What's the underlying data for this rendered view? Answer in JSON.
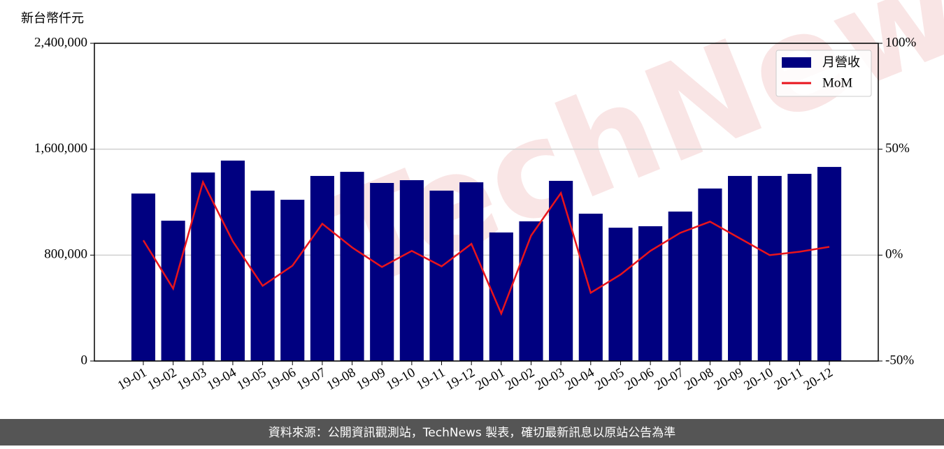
{
  "chart_data": {
    "type": "bar-line",
    "y_axis_label": "新台幣仟元",
    "footer": "資料來源：公開資訊觀測站，TechNews 製表，確切最新訊息以原站公告為準",
    "watermark": "TechNews",
    "categories": [
      "19-01",
      "19-02",
      "19-03",
      "19-04",
      "19-05",
      "19-06",
      "19-07",
      "19-08",
      "19-09",
      "19-10",
      "19-11",
      "19-12",
      "20-01",
      "20-02",
      "20-03",
      "20-04",
      "20-05",
      "20-06",
      "20-07",
      "20-08",
      "20-09",
      "20-10",
      "20-11",
      "20-12"
    ],
    "series": [
      {
        "name": "月營收",
        "color": "#000080",
        "values": [
          1265000,
          1060000,
          1424000,
          1514000,
          1287000,
          1218000,
          1398000,
          1429000,
          1345000,
          1366000,
          1287000,
          1350000,
          971000,
          1055000,
          1361000,
          1113000,
          1007000,
          1018000,
          1129000,
          1303000,
          1398000,
          1398000,
          1414000,
          1466000
        ]
      },
      {
        "name": "MoM",
        "color": "#e8141c",
        "axis": "y2",
        "values": [
          7,
          -15.8,
          34.5,
          6.5,
          -14.5,
          -5,
          14.8,
          3.6,
          -5.6,
          2,
          -5.3,
          5.3,
          -27.6,
          9.2,
          29.3,
          -17.8,
          -9.2,
          2,
          10.5,
          15.8,
          7.9,
          0,
          1.6,
          3.9
        ]
      }
    ],
    "ylim": [
      0,
      2400000
    ],
    "yticks": [
      0,
      {
        "value": 800000,
        "label": "800,000"
      },
      {
        "value": 1600000,
        "label": "1,600,000"
      },
      {
        "value": 2400000,
        "label": "2,400,000"
      }
    ],
    "y2lim": [
      -50,
      100
    ],
    "y2ticks": [
      {
        "value": -50,
        "label": "-50%"
      },
      {
        "value": 0,
        "label": "0%"
      },
      {
        "value": 50,
        "label": "50%"
      },
      {
        "value": 100,
        "label": "100%"
      }
    ],
    "grid": true,
    "legend": "upper right"
  }
}
